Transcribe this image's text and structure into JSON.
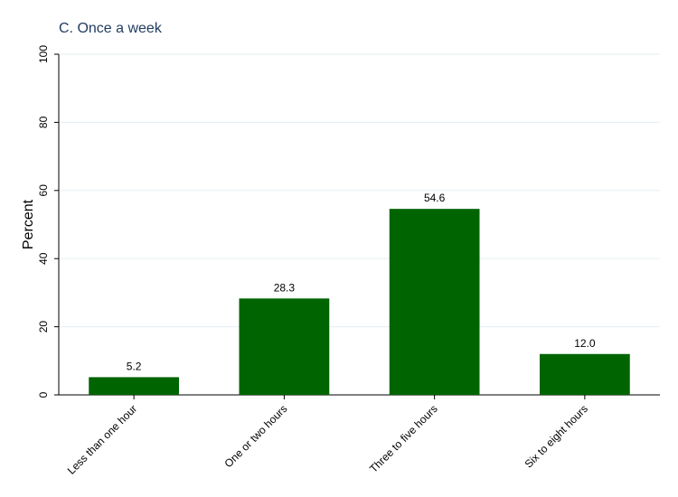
{
  "chart_data": {
    "type": "bar",
    "title": "C. Once a week",
    "xlabel": "",
    "ylabel": "Percent",
    "categories": [
      "Less than one hour",
      "One or two hours",
      "Three to five hours",
      "Six to eight hours"
    ],
    "values": [
      5.2,
      28.3,
      54.6,
      12.0
    ],
    "value_labels": [
      "5.2",
      "28.3",
      "54.6",
      "12.0"
    ],
    "ylim": [
      0,
      100
    ],
    "yticks": [
      0,
      20,
      40,
      60,
      80,
      100
    ],
    "ytick_labels": [
      "0",
      "20",
      "40",
      "60",
      "80",
      "100"
    ],
    "grid": true,
    "legend": "none",
    "colors": {
      "bar": "#006400",
      "title": "#1f3a5f",
      "grid": "#eaf0f4",
      "axis": "#000000"
    }
  }
}
